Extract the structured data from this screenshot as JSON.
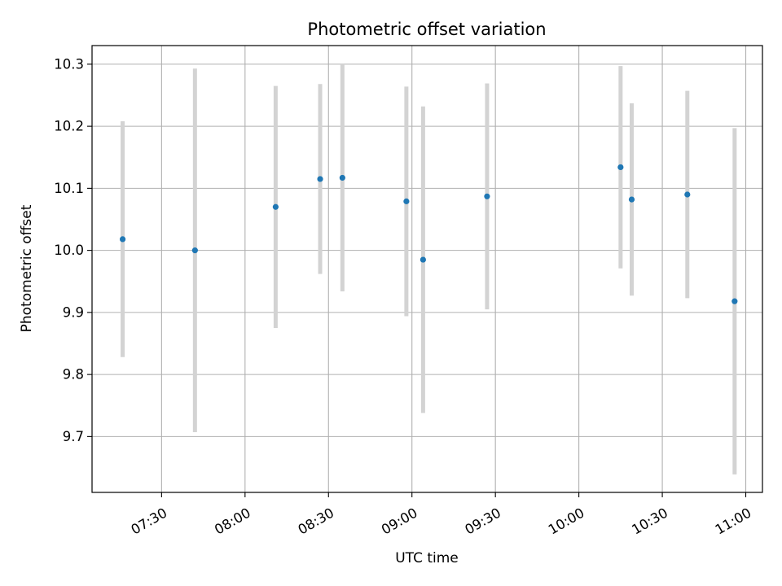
{
  "chart_data": {
    "type": "scatter",
    "title": "Photometric offset variation",
    "xlabel": "UTC time",
    "ylabel": "Photometric offset",
    "x_tick_labels": [
      "07:30",
      "08:00",
      "08:30",
      "09:00",
      "09:30",
      "10:00",
      "10:30",
      "11:00"
    ],
    "x_tick_minutes": [
      450,
      480,
      510,
      540,
      570,
      600,
      630,
      660
    ],
    "y_ticks": [
      9.7,
      9.8,
      9.9,
      10.0,
      10.1,
      10.2,
      10.3
    ],
    "y_tick_labels": [
      "9.7",
      "9.8",
      "9.9",
      "10.0",
      "10.1",
      "10.2",
      "10.3"
    ],
    "xlim": [
      "07:05",
      "11:06"
    ],
    "ylim": [
      9.61,
      10.33
    ],
    "grid": true,
    "marker_color": "#1f77b4",
    "errorbar_color": "#d3d3d3",
    "points": [
      {
        "time": "07:16",
        "value": 10.018,
        "error": 0.19
      },
      {
        "time": "07:42",
        "value": 10.0,
        "error": 0.293
      },
      {
        "time": "08:11",
        "value": 10.07,
        "error": 0.195
      },
      {
        "time": "08:27",
        "value": 10.115,
        "error": 0.153
      },
      {
        "time": "08:35",
        "value": 10.117,
        "error": 0.183
      },
      {
        "time": "08:58",
        "value": 10.079,
        "error": 0.185
      },
      {
        "time": "09:04",
        "value": 9.985,
        "error": 0.247
      },
      {
        "time": "09:27",
        "value": 10.087,
        "error": 0.182
      },
      {
        "time": "10:15",
        "value": 10.134,
        "error": 0.163
      },
      {
        "time": "10:19",
        "value": 10.082,
        "error": 0.155
      },
      {
        "time": "10:39",
        "value": 10.09,
        "error": 0.167
      },
      {
        "time": "10:56",
        "value": 9.918,
        "error": 0.279
      }
    ]
  }
}
